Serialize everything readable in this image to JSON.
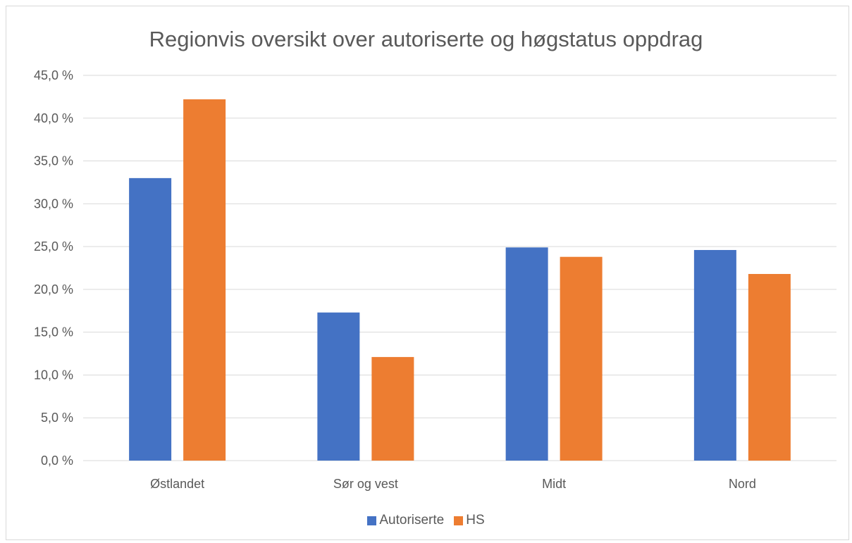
{
  "chart_data": {
    "type": "bar",
    "title": "Regionvis oversikt over autoriserte og høgstatus oppdrag",
    "categories": [
      "Østlandet",
      "Sør og vest",
      "Midt",
      "Nord"
    ],
    "series": [
      {
        "name": "Autoriserte",
        "color": "#4472C4",
        "values": [
          33.0,
          17.3,
          24.9,
          24.6
        ]
      },
      {
        "name": "HS",
        "color": "#ED7D31",
        "values": [
          42.2,
          12.1,
          23.8,
          21.8
        ]
      }
    ],
    "ylim": [
      0,
      45
    ],
    "yticks": [
      "0,0 %",
      "5,0 %",
      "10,0 %",
      "15,0 %",
      "20,0 %",
      "25,0 %",
      "30,0 %",
      "35,0 %",
      "40,0 %",
      "45,0 %"
    ],
    "grid": true,
    "legend_position": "bottom"
  }
}
